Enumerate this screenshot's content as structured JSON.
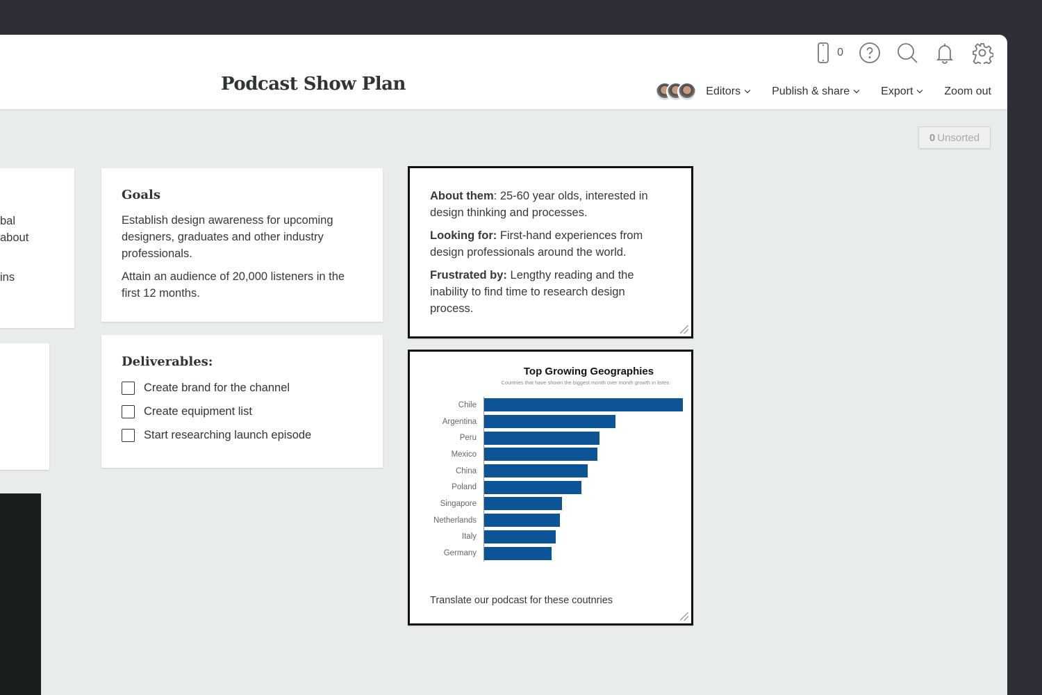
{
  "header": {
    "title": "Podcast Show Plan",
    "device_count": "0",
    "icons": [
      "mobile-icon",
      "help-icon",
      "search-icon",
      "bell-icon",
      "gear-icon"
    ],
    "nav": [
      {
        "label": "Editors"
      },
      {
        "label": "Publish & share"
      },
      {
        "label": "Export"
      },
      {
        "label": "Zoom out"
      }
    ]
  },
  "unsorted": {
    "count": "0",
    "label": "Unsorted"
  },
  "left_card": {
    "fragments": [
      "bal",
      " about",
      "ins"
    ]
  },
  "goals": {
    "title": "Goals",
    "items": [
      "Establish design awareness for upcoming designers, graduates and other industry professionals.",
      "Attain an audience of 20,000 listeners in the first 12 months."
    ]
  },
  "deliverables": {
    "title": "Deliverables:",
    "items": [
      "Create brand for the channel",
      "Create equipment list",
      "Start researching launch episode"
    ]
  },
  "audience": {
    "items": [
      {
        "label": "About them",
        "text": ": 25-60 year olds, interested in design thinking and processes."
      },
      {
        "label": "Looking for:",
        "text": " First-hand experiences from design professionals around the world."
      },
      {
        "label": "Frustrated by:",
        "text": " Lengthy reading and the inability to find time to research design process."
      }
    ]
  },
  "chart_card": {
    "caption": "Translate our podcast for these coutnries"
  },
  "chart_data": {
    "type": "bar",
    "orientation": "horizontal",
    "title": "Top Growing Geographies",
    "subtitle": "Countries that have shown the biggest month over month growth in listen",
    "categories": [
      "Chile",
      "Argentina",
      "Peru",
      "Mexico",
      "China",
      "Poland",
      "Singapore",
      "Netherlands",
      "Italy",
      "Germany"
    ],
    "values": [
      100,
      66,
      58,
      57,
      52,
      49,
      39,
      38,
      36,
      34
    ],
    "color": "#0d5496",
    "grid": false
  }
}
